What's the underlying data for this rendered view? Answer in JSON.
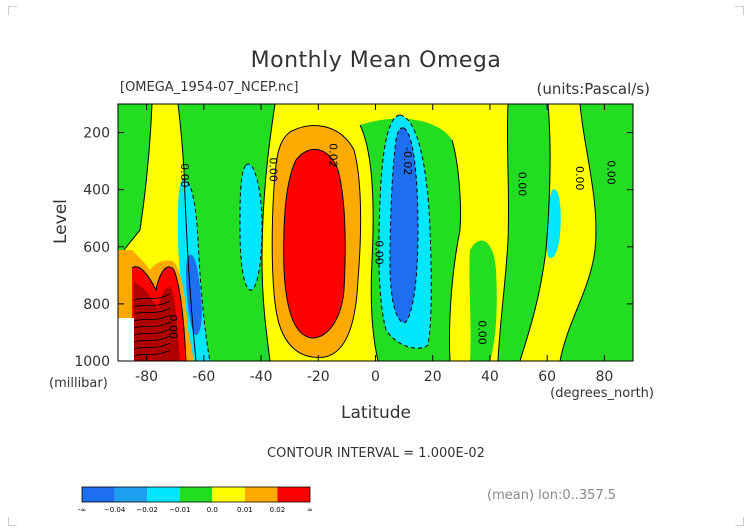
{
  "chart_data": {
    "type": "heatmap",
    "title": "Monthly Mean Omega",
    "file_label": "[OMEGA_1954-07_NCEP.nc]",
    "units_label": "(units:Pascal/s)",
    "xlabel": "Latitude",
    "xunit": "(degrees_north)",
    "ylabel": "Level",
    "yunit": "(millibar)",
    "xlim": [
      -90,
      90
    ],
    "ylim": [
      100,
      1000
    ],
    "y_inverted": true,
    "xticks": [
      "-80",
      "-60",
      "-40",
      "-20",
      "0",
      "20",
      "40",
      "60",
      "80"
    ],
    "xtick_values": [
      -80,
      -60,
      -40,
      -20,
      0,
      20,
      40,
      60,
      80
    ],
    "yticks": [
      "200",
      "400",
      "600",
      "800",
      "1000"
    ],
    "ytick_values": [
      200,
      400,
      600,
      800,
      1000
    ],
    "contour_interval_text": "CONTOUR INTERVAL = 1.000E-02",
    "mean_text": "(mean) lon:0..357.5",
    "contour_labels": [
      {
        "text": "0.00",
        "lat": -68,
        "lev": 350
      },
      {
        "text": "0.00",
        "lat": -37,
        "lev": 330
      },
      {
        "text": "0.02",
        "lat": -16,
        "lev": 280
      },
      {
        "text": "-0.02",
        "lat": 10,
        "lev": 300
      },
      {
        "text": "0.00",
        "lat": 0,
        "lev": 620
      },
      {
        "text": "0.00",
        "lat": -72,
        "lev": 880
      },
      {
        "text": "0.00",
        "lat": 36,
        "lev": 900
      },
      {
        "text": "0.00",
        "lat": 50,
        "lev": 380
      },
      {
        "text": "0.00",
        "lat": 70,
        "lev": 360
      },
      {
        "text": "0.00",
        "lat": 81,
        "lev": 340
      }
    ],
    "colorbar": {
      "labels": [
        "-∞",
        "−0.04",
        "−0.02",
        "−0.01",
        "0.0",
        "0.01",
        "0.02",
        "∞"
      ],
      "colors": [
        "#1e6ef0",
        "#1ea0f0",
        "#00e6ff",
        "#22dd22",
        "#ffff00",
        "#ffaa00",
        "#ff0000"
      ]
    },
    "colors": {
      "deep_negative": "#1e6ef0",
      "negative": "#00e6ff",
      "near_zero": "#22dd22",
      "positive": "#ffff00",
      "mid_positive": "#ffaa00",
      "strong_positive": "#ff0000",
      "very_strong_positive": "#b00000"
    }
  }
}
